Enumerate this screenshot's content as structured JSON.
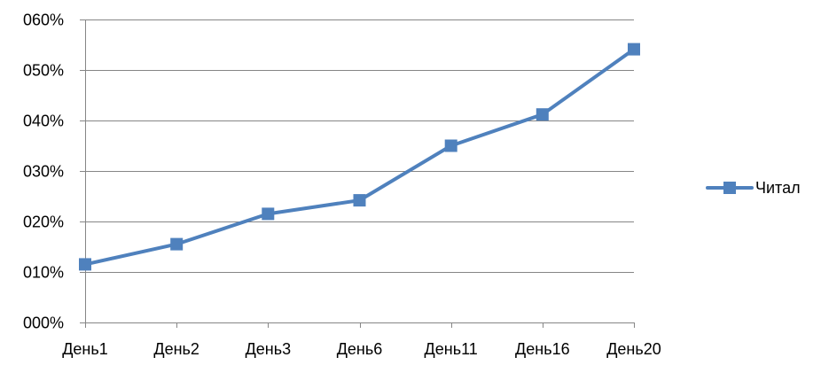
{
  "chart_data": {
    "type": "line",
    "categories": [
      "День1",
      "День2",
      "День3",
      "День6",
      "День11",
      "День16",
      "День20"
    ],
    "series": [
      {
        "name": "Читал",
        "values": [
          0.115,
          0.155,
          0.215,
          0.242,
          0.35,
          0.412,
          0.541
        ],
        "color": "#4F81BD",
        "marker": "square"
      }
    ],
    "ylim": [
      0,
      0.6
    ],
    "yticks": [
      0,
      0.1,
      0.2,
      0.3,
      0.4,
      0.5,
      0.6
    ],
    "ytick_labels": [
      "000%",
      "010%",
      "020%",
      "030%",
      "040%",
      "050%",
      "060%"
    ],
    "grid": true,
    "gridline_color": "#868686",
    "legend_position": "right"
  }
}
